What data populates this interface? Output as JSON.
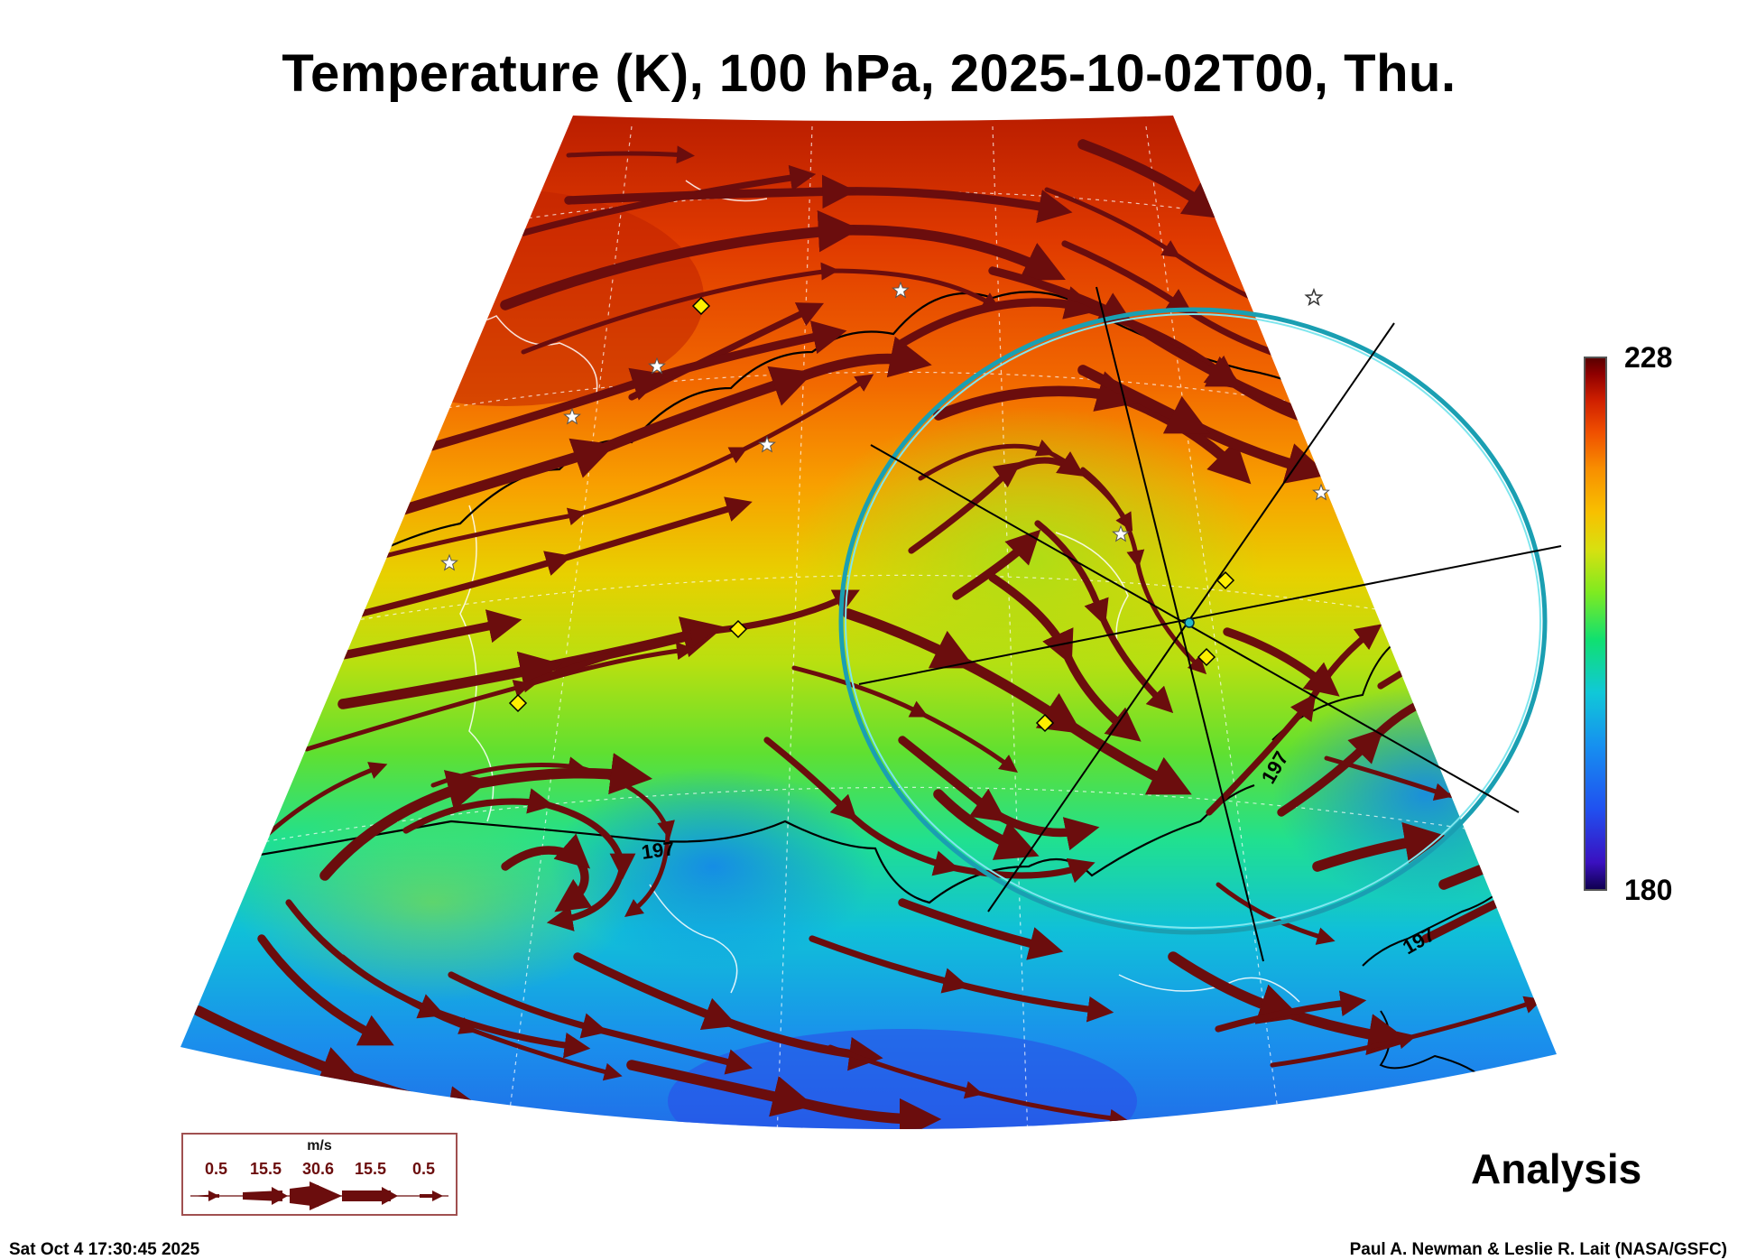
{
  "title": "Temperature (K), 100 hPa, 2025-10-02T00, Thu.",
  "colorbar": {
    "max": "228",
    "min": "180"
  },
  "contour_labels": [
    "197",
    "197",
    "197"
  ],
  "analysis_label": "Analysis",
  "legend": {
    "unit": "m/s",
    "values": [
      "0.5",
      "15.5",
      "30.6",
      "15.5",
      "0.5"
    ]
  },
  "timestamp": "Sat Oct  4 17:30:45 2025",
  "credit": "Paul A. Newman & Leslie R. Lait (NASA/GSFC)",
  "colors": {
    "streamline": "#6b0d0d",
    "ring": "#26b8c8",
    "marker": "#ffee00"
  },
  "icons": [
    "star-icon",
    "diamond-icon",
    "arrow-icon"
  ]
}
